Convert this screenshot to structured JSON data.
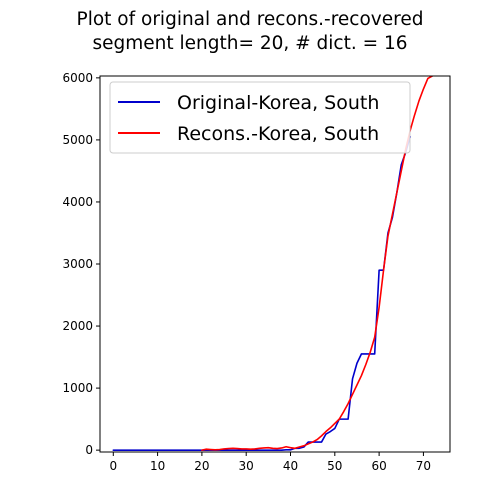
{
  "chart_data": {
    "type": "line",
    "title_line1": "Plot of original and recons.-recovered",
    "title_line2": "segment length= 20, # dict. = 16",
    "xlabel": "",
    "ylabel": "",
    "xlim": [
      -3,
      76
    ],
    "ylim": [
      -30,
      6030
    ],
    "xticks": [
      0,
      10,
      20,
      30,
      40,
      50,
      60,
      70
    ],
    "yticks": [
      0,
      1000,
      2000,
      3000,
      4000,
      5000,
      6000
    ],
    "legend_position": "top-left",
    "grid": false,
    "series": [
      {
        "name": "Original-Korea, South",
        "color": "#0000cc",
        "points": [
          [
            0,
            0
          ],
          [
            1,
            0
          ],
          [
            2,
            0
          ],
          [
            3,
            0
          ],
          [
            4,
            0
          ],
          [
            5,
            0
          ],
          [
            6,
            0
          ],
          [
            7,
            0
          ],
          [
            8,
            0
          ],
          [
            9,
            0
          ],
          [
            10,
            0
          ],
          [
            11,
            0
          ],
          [
            12,
            0
          ],
          [
            13,
            0
          ],
          [
            14,
            0
          ],
          [
            15,
            0
          ],
          [
            16,
            0
          ],
          [
            17,
            0
          ],
          [
            18,
            0
          ],
          [
            19,
            0
          ],
          [
            20,
            0
          ],
          [
            21,
            0
          ],
          [
            22,
            0
          ],
          [
            23,
            0
          ],
          [
            24,
            0
          ],
          [
            25,
            0
          ],
          [
            26,
            0
          ],
          [
            27,
            0
          ],
          [
            28,
            0
          ],
          [
            29,
            0
          ],
          [
            30,
            0
          ],
          [
            31,
            0
          ],
          [
            32,
            0
          ],
          [
            33,
            0
          ],
          [
            34,
            0
          ],
          [
            35,
            0
          ],
          [
            36,
            0
          ],
          [
            37,
            0
          ],
          [
            38,
            0
          ],
          [
            39,
            5
          ],
          [
            40,
            5
          ],
          [
            41,
            30
          ],
          [
            42,
            30
          ],
          [
            43,
            50
          ],
          [
            44,
            130
          ],
          [
            45,
            130
          ],
          [
            46,
            130
          ],
          [
            47,
            130
          ],
          [
            48,
            260
          ],
          [
            49,
            300
          ],
          [
            50,
            350
          ],
          [
            51,
            500
          ],
          [
            52,
            500
          ],
          [
            53,
            500
          ],
          [
            54,
            1150
          ],
          [
            55,
            1400
          ],
          [
            56,
            1550
          ],
          [
            57,
            1550
          ],
          [
            58,
            1550
          ],
          [
            59,
            1550
          ],
          [
            60,
            2900
          ],
          [
            61,
            2900
          ],
          [
            62,
            3500
          ],
          [
            63,
            3750
          ],
          [
            64,
            4150
          ],
          [
            65,
            4600
          ],
          [
            66,
            4800
          ],
          [
            67,
            5050
          ]
        ]
      },
      {
        "name": "Recons.-Korea, South",
        "color": "#ff0000",
        "points": [
          [
            20,
            0
          ],
          [
            21,
            15
          ],
          [
            22,
            10
          ],
          [
            23,
            5
          ],
          [
            24,
            10
          ],
          [
            25,
            20
          ],
          [
            26,
            25
          ],
          [
            27,
            30
          ],
          [
            28,
            25
          ],
          [
            29,
            20
          ],
          [
            30,
            20
          ],
          [
            31,
            15
          ],
          [
            32,
            20
          ],
          [
            33,
            30
          ],
          [
            34,
            35
          ],
          [
            35,
            40
          ],
          [
            36,
            30
          ],
          [
            37,
            25
          ],
          [
            38,
            35
          ],
          [
            39,
            55
          ],
          [
            40,
            40
          ],
          [
            41,
            30
          ],
          [
            42,
            50
          ],
          [
            43,
            70
          ],
          [
            44,
            100
          ],
          [
            45,
            130
          ],
          [
            46,
            170
          ],
          [
            47,
            230
          ],
          [
            48,
            300
          ],
          [
            49,
            360
          ],
          [
            50,
            430
          ],
          [
            51,
            500
          ],
          [
            52,
            620
          ],
          [
            53,
            750
          ],
          [
            54,
            900
          ],
          [
            55,
            1050
          ],
          [
            56,
            1200
          ],
          [
            57,
            1380
          ],
          [
            58,
            1580
          ],
          [
            59,
            1820
          ],
          [
            60,
            2300
          ],
          [
            61,
            2900
          ],
          [
            62,
            3450
          ],
          [
            63,
            3800
          ],
          [
            64,
            4150
          ],
          [
            65,
            4500
          ],
          [
            66,
            4850
          ],
          [
            67,
            5150
          ],
          [
            68,
            5400
          ],
          [
            69,
            5630
          ],
          [
            70,
            5820
          ],
          [
            71,
            5990
          ],
          [
            72,
            6030
          ]
        ]
      }
    ]
  }
}
